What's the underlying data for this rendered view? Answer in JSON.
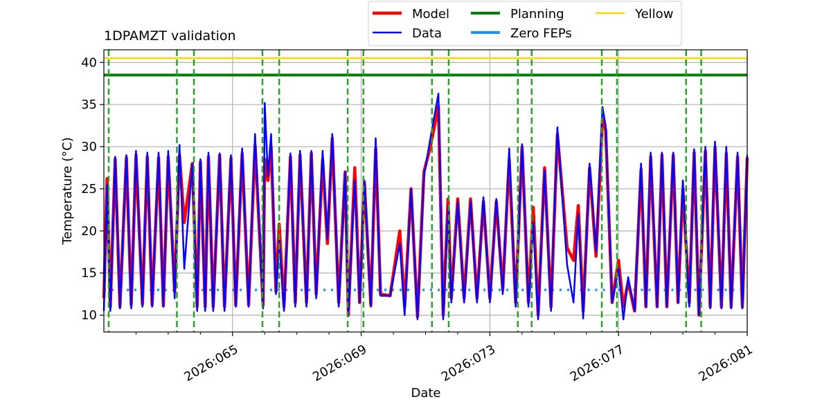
{
  "chart_data": {
    "type": "line",
    "title": "1DPAMZT validation",
    "xlabel": "Date",
    "ylabel": "Temperature ($^\\circ$C)",
    "ylabel_display": "Temperature (°C)",
    "xlim": [
      61.0,
      81.0
    ],
    "ylim": [
      8.0,
      41.5
    ],
    "x_ticks": [
      65,
      69,
      73,
      77,
      81
    ],
    "x_tick_labels": [
      "2026:065",
      "2026:069",
      "2026:073",
      "2026:077",
      "2026:081"
    ],
    "x_minor_ticks": [
      62,
      63,
      64,
      66,
      67,
      68,
      70,
      71,
      72,
      74,
      75,
      76,
      78,
      79,
      80
    ],
    "y_ticks": [
      10,
      15,
      20,
      25,
      30,
      35,
      40
    ],
    "y_tick_labels": [
      "10",
      "15",
      "20",
      "25",
      "30",
      "35",
      "40"
    ],
    "grid": true,
    "legend_position": "top-center-outside",
    "legend": [
      {
        "label": "Model",
        "color": "#ff0000"
      },
      {
        "label": "Data",
        "color": "#0000ff"
      },
      {
        "label": "Planning",
        "color": "#008000"
      },
      {
        "label": "Zero FEPs",
        "color": "#1e90ff"
      },
      {
        "label": "Yellow",
        "color": "#ffd700"
      }
    ],
    "planning_limit": 38.5,
    "yellow_limit": 40.5,
    "zero_feps_level": 13.0,
    "zero_feps_segments": [
      [
        61.0,
        63.3
      ],
      [
        63.8,
        75.5
      ],
      [
        75.8,
        81.0
      ]
    ],
    "vertical_dashed_lines": [
      61.15,
      63.27,
      63.8,
      65.93,
      66.45,
      68.58,
      69.07,
      71.2,
      71.72,
      73.87,
      74.3,
      76.48,
      76.95,
      79.1,
      79.57
    ],
    "vertical_line_color": "#2ca02c",
    "model_series": {
      "name": "Model",
      "color": "#ff0000",
      "x": [
        61.0,
        61.1,
        61.2,
        61.35,
        61.5,
        61.7,
        61.85,
        62.0,
        62.2,
        62.35,
        62.5,
        62.7,
        62.85,
        63.0,
        63.2,
        63.35,
        63.5,
        63.75,
        63.9,
        64.0,
        64.15,
        64.25,
        64.4,
        64.6,
        64.75,
        64.95,
        65.1,
        65.3,
        65.5,
        65.7,
        65.95,
        66.0,
        66.1,
        66.2,
        66.35,
        66.45,
        66.6,
        66.8,
        66.95,
        67.1,
        67.3,
        67.45,
        67.6,
        67.8,
        67.95,
        68.1,
        68.3,
        68.5,
        68.6,
        68.8,
        68.95,
        69.1,
        69.3,
        69.45,
        69.6,
        69.9,
        70.2,
        70.35,
        70.55,
        70.75,
        70.95,
        71.15,
        71.4,
        71.55,
        71.7,
        71.8,
        72.0,
        72.2,
        72.4,
        72.6,
        72.8,
        73.0,
        73.2,
        73.4,
        73.6,
        73.8,
        74.0,
        74.2,
        74.35,
        74.5,
        74.7,
        74.9,
        75.1,
        75.4,
        75.6,
        75.75,
        75.9,
        76.1,
        76.3,
        76.5,
        76.6,
        76.8,
        77.0,
        77.15,
        77.3,
        77.5,
        77.7,
        77.85,
        78.0,
        78.2,
        78.35,
        78.5,
        78.7,
        78.85,
        79.0,
        79.2,
        79.35,
        79.5,
        79.7,
        79.85,
        80.0,
        80.2,
        80.35,
        80.5,
        80.7,
        80.85,
        81.0
      ],
      "values": [
        12,
        26.2,
        11,
        28.5,
        11,
        28.7,
        11.2,
        29,
        11.3,
        28.8,
        11.2,
        28.7,
        11.1,
        28.8,
        12.8,
        29,
        21,
        28,
        11,
        28.2,
        11,
        28.8,
        11,
        29,
        11,
        28.6,
        11.2,
        29.2,
        11.2,
        30.2,
        11.2,
        28.5,
        26,
        30,
        12.8,
        20.8,
        11,
        28.8,
        11.5,
        29,
        11.5,
        29.2,
        12.5,
        28.5,
        18.5,
        31,
        11.5,
        27,
        10,
        27.5,
        11.5,
        25.8,
        11.2,
        29.8,
        12.5,
        12.3,
        20,
        11,
        25,
        9.8,
        27,
        30,
        34.8,
        10,
        23.8,
        12,
        23.8,
        12,
        23.8,
        12,
        23.5,
        12,
        23.5,
        13,
        28.5,
        11.5,
        30,
        11.5,
        22.8,
        10,
        27.5,
        11,
        31.5,
        18,
        16.5,
        23,
        10.5,
        27.5,
        17,
        33.3,
        32,
        11.5,
        16.5,
        11,
        14,
        10.5,
        27.3,
        11,
        28.8,
        11,
        29,
        11,
        29,
        11.5,
        25,
        11.5,
        29.3,
        10,
        29.5,
        11,
        30,
        11,
        29.2,
        11,
        28.8,
        11,
        28.7
      ]
    },
    "data_series": {
      "name": "Data",
      "color": "#0000ff",
      "x": [
        61.0,
        61.1,
        61.2,
        61.35,
        61.5,
        61.7,
        61.85,
        62.0,
        62.2,
        62.35,
        62.5,
        62.7,
        62.85,
        63.0,
        63.2,
        63.35,
        63.5,
        63.75,
        63.9,
        64.0,
        64.15,
        64.25,
        64.4,
        64.6,
        64.75,
        64.95,
        65.1,
        65.3,
        65.5,
        65.7,
        65.95,
        66.0,
        66.1,
        66.2,
        66.35,
        66.45,
        66.6,
        66.8,
        66.95,
        67.1,
        67.3,
        67.45,
        67.6,
        67.8,
        67.95,
        68.1,
        68.3,
        68.5,
        68.6,
        68.8,
        68.95,
        69.1,
        69.3,
        69.45,
        69.6,
        69.9,
        70.2,
        70.35,
        70.55,
        70.75,
        70.95,
        71.15,
        71.4,
        71.55,
        71.7,
        71.8,
        72.0,
        72.2,
        72.4,
        72.6,
        72.8,
        73.0,
        73.2,
        73.4,
        73.6,
        73.8,
        74.0,
        74.2,
        74.35,
        74.5,
        74.7,
        74.9,
        75.1,
        75.4,
        75.6,
        75.75,
        75.9,
        76.1,
        76.3,
        76.5,
        76.6,
        76.8,
        77.0,
        77.15,
        77.3,
        77.5,
        77.7,
        77.85,
        78.0,
        78.2,
        78.35,
        78.5,
        78.7,
        78.85,
        79.0,
        79.2,
        79.35,
        79.5,
        79.7,
        79.85,
        80.0,
        80.2,
        80.35,
        80.5,
        80.7,
        80.85,
        81.0
      ],
      "values": [
        10.5,
        25.5,
        10.5,
        28.8,
        10.8,
        29,
        10.8,
        29.5,
        11,
        29.3,
        11,
        29.3,
        11,
        29.5,
        12,
        30.2,
        15.5,
        28,
        10.5,
        28.5,
        10.5,
        29.3,
        10.5,
        29.2,
        10.5,
        29,
        11,
        29.8,
        11,
        31.5,
        10.8,
        35.2,
        26.5,
        31.5,
        12.5,
        19,
        10.5,
        29.2,
        11,
        29.5,
        11,
        29.5,
        12,
        29.5,
        19,
        31.5,
        11,
        27,
        10,
        26,
        11.5,
        26,
        11,
        31,
        12.3,
        12.3,
        18.5,
        10,
        25,
        9.5,
        26.5,
        31,
        36.3,
        9.5,
        23,
        11.5,
        23.5,
        11.5,
        23.5,
        11.5,
        24,
        11.5,
        23.8,
        12.5,
        29.8,
        11,
        30.3,
        11,
        21,
        9.5,
        27.2,
        10.5,
        32.3,
        16,
        11.5,
        22,
        9.6,
        28,
        17.5,
        34.7,
        32.5,
        11.5,
        15.5,
        9.5,
        14.5,
        10.5,
        28,
        11,
        29.3,
        11,
        29.3,
        11,
        29.3,
        11.5,
        26,
        11,
        29.7,
        10,
        30,
        10.8,
        30.6,
        10.8,
        30,
        10.8,
        29.3,
        10.8,
        29
      ]
    }
  }
}
